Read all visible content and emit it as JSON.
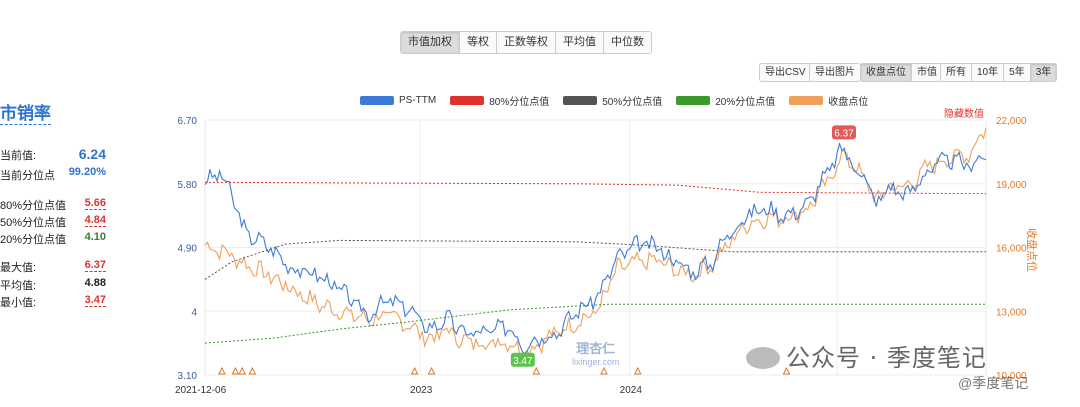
{
  "top_tabs": [
    "市值加权",
    "等权",
    "正数等权",
    "平均值",
    "中位数"
  ],
  "top_active": 0,
  "export_csv": "导出CSV",
  "export_img": "导出图片",
  "view_tabs": [
    "收盘点位",
    "市值"
  ],
  "range_tabs": [
    "所有",
    "10年",
    "5年",
    "3年"
  ],
  "side": {
    "title": "市销率",
    "rows": [
      {
        "label": "当前值:",
        "value": "6.24",
        "color": "#2f74d0"
      },
      {
        "label": "当前分位点",
        "value": "99.20%",
        "color": "#2f74d0"
      },
      {
        "label": "80%分位点值",
        "value": "5.66",
        "color": "#d33"
      },
      {
        "label": "50%分位点值",
        "value": "4.84",
        "color": "#d33"
      },
      {
        "label": "20%分位点值",
        "value": "4.10",
        "color": "#3a7d2c"
      },
      {
        "label": "最大值:",
        "value": "6.37",
        "color": "#d33"
      },
      {
        "label": "平均值:",
        "value": "4.88",
        "color": "#222"
      },
      {
        "label": "最小值:",
        "value": "3.47",
        "color": "#d33"
      }
    ]
  },
  "hide_values": "隐藏数值",
  "right_axis_label": "收盘点位",
  "watermark": {
    "main": "公众号 · 季度笔记",
    "small": "@季度笔记",
    "lx_cn": "理杏仁",
    "lx_en": "lixinger.com"
  },
  "chart_data": {
    "type": "line",
    "series": [
      {
        "name": "PS-TTM",
        "color": "#3d7bd9"
      },
      {
        "name": "80%分位点值",
        "color": "#e0322c"
      },
      {
        "name": "50%分位点值",
        "color": "#555555"
      },
      {
        "name": "20%分位点值",
        "color": "#3a9a2a"
      },
      {
        "name": "收盘点位",
        "color": "#f0a05a"
      }
    ],
    "x_ticks": [
      "2021-12-06",
      "2023",
      "2024"
    ],
    "y_left_ticks": [
      "6.70",
      "5.80",
      "4.90",
      "4",
      "3.10"
    ],
    "y_left_range": [
      3.1,
      6.7
    ],
    "y_right_ticks": [
      "22,000",
      "19,000",
      "16,000",
      "13,000",
      "10,000"
    ],
    "y_right_range": [
      10000,
      22000
    ],
    "max_label": "6.37",
    "min_label": "3.47",
    "ps_ttm_anchors": [
      [
        0,
        5.82
      ],
      [
        0.02,
        5.95
      ],
      [
        0.035,
        5.75
      ],
      [
        0.06,
        5.1
      ],
      [
        0.09,
        4.95
      ],
      [
        0.13,
        4.6
      ],
      [
        0.17,
        4.5
      ],
      [
        0.2,
        4.3
      ],
      [
        0.24,
        3.95
      ],
      [
        0.27,
        4.15
      ],
      [
        0.3,
        4.05
      ],
      [
        0.33,
        3.75
      ],
      [
        0.36,
        3.9
      ],
      [
        0.38,
        3.7
      ],
      [
        0.42,
        3.7
      ],
      [
        0.45,
        3.8
      ],
      [
        0.47,
        3.52
      ],
      [
        0.49,
        3.62
      ],
      [
        0.52,
        3.7
      ],
      [
        0.55,
        4.0
      ],
      [
        0.58,
        4.2
      ],
      [
        0.61,
        4.75
      ],
      [
        0.64,
        4.95
      ],
      [
        0.67,
        4.9
      ],
      [
        0.69,
        4.75
      ],
      [
        0.72,
        4.55
      ],
      [
        0.75,
        4.7
      ],
      [
        0.77,
        5.05
      ],
      [
        0.8,
        5.35
      ],
      [
        0.83,
        5.45
      ],
      [
        0.86,
        5.35
      ],
      [
        0.89,
        5.5
      ],
      [
        0.92,
        5.95
      ],
      [
        0.945,
        6.32
      ],
      [
        0.96,
        6.0
      ],
      [
        0.975,
        5.95
      ],
      [
        0.99,
        5.5
      ],
      [
        1.01,
        5.75
      ],
      [
        1.04,
        5.65
      ],
      [
        1.07,
        6.0
      ],
      [
        1.1,
        6.15
      ],
      [
        1.13,
        6.05
      ],
      [
        1.155,
        6.24
      ]
    ],
    "close_anchors": [
      [
        0,
        16100
      ],
      [
        0.03,
        15800
      ],
      [
        0.06,
        15200
      ],
      [
        0.1,
        14600
      ],
      [
        0.13,
        14000
      ],
      [
        0.17,
        13300
      ],
      [
        0.2,
        13000
      ],
      [
        0.24,
        12600
      ],
      [
        0.27,
        12800
      ],
      [
        0.3,
        12400
      ],
      [
        0.33,
        11700
      ],
      [
        0.36,
        12100
      ],
      [
        0.38,
        11600
      ],
      [
        0.42,
        11500
      ],
      [
        0.45,
        11600
      ],
      [
        0.47,
        11000
      ],
      [
        0.49,
        11400
      ],
      [
        0.52,
        12000
      ],
      [
        0.55,
        12500
      ],
      [
        0.58,
        13000
      ],
      [
        0.61,
        15000
      ],
      [
        0.64,
        15300
      ],
      [
        0.67,
        15400
      ],
      [
        0.69,
        15000
      ],
      [
        0.72,
        14700
      ],
      [
        0.75,
        15200
      ],
      [
        0.77,
        16000
      ],
      [
        0.8,
        17100
      ],
      [
        0.83,
        17400
      ],
      [
        0.86,
        17400
      ],
      [
        0.89,
        17800
      ],
      [
        0.92,
        19000
      ],
      [
        0.945,
        20500
      ],
      [
        0.96,
        19700
      ],
      [
        0.975,
        19400
      ],
      [
        0.99,
        18200
      ],
      [
        1.01,
        18800
      ],
      [
        1.04,
        18900
      ],
      [
        1.07,
        19800
      ],
      [
        1.1,
        20200
      ],
      [
        1.13,
        20400
      ],
      [
        1.155,
        21700
      ]
    ],
    "p80_anchors": [
      [
        0,
        5.82
      ],
      [
        0.55,
        5.8
      ],
      [
        0.7,
        5.78
      ],
      [
        0.82,
        5.68
      ],
      [
        1.155,
        5.66
      ]
    ],
    "p50_anchors": [
      [
        0,
        4.45
      ],
      [
        0.04,
        4.7
      ],
      [
        0.12,
        4.95
      ],
      [
        0.2,
        5.0
      ],
      [
        0.55,
        4.98
      ],
      [
        0.65,
        4.93
      ],
      [
        0.78,
        4.84
      ],
      [
        1.155,
        4.84
      ]
    ],
    "p20_anchors": [
      [
        0,
        3.55
      ],
      [
        0.1,
        3.62
      ],
      [
        0.2,
        3.75
      ],
      [
        0.3,
        3.85
      ],
      [
        0.45,
        4.02
      ],
      [
        0.6,
        4.1
      ],
      [
        1.155,
        4.1
      ]
    ]
  }
}
